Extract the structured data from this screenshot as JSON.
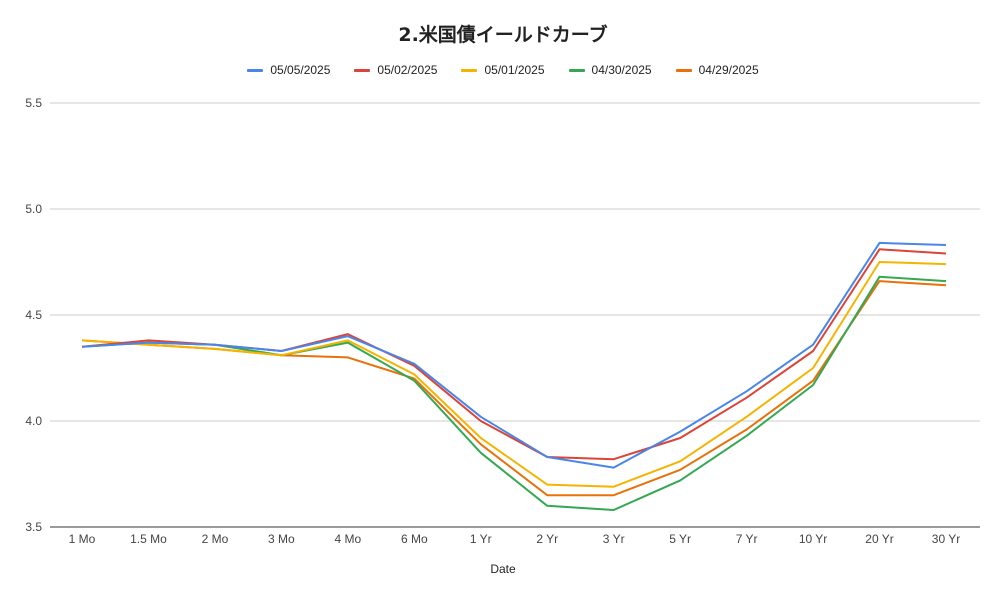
{
  "chart_data": {
    "type": "line",
    "title": "2.米国債イールドカーブ",
    "xlabel": "Date",
    "ylabel": "",
    "categories": [
      "1 Mo",
      "1.5 Mo",
      "2 Mo",
      "3 Mo",
      "4 Mo",
      "6 Mo",
      "1 Yr",
      "2 Yr",
      "3 Yr",
      "5 Yr",
      "7 Yr",
      "10 Yr",
      "20 Yr",
      "30 Yr"
    ],
    "ylim": [
      3.5,
      5.5
    ],
    "yticks": [
      "3.5",
      "4.0",
      "4.5",
      "5.0",
      "5.5"
    ],
    "grid": true,
    "legend_position": "top",
    "series": [
      {
        "name": "05/05/2025",
        "color": "#4a86e8",
        "values": [
          4.35,
          4.37,
          4.36,
          4.33,
          4.4,
          4.27,
          4.02,
          3.83,
          3.78,
          3.95,
          4.14,
          4.36,
          4.84,
          4.83
        ]
      },
      {
        "name": "05/02/2025",
        "color": "#db4437",
        "values": [
          4.35,
          4.38,
          4.36,
          4.33,
          4.41,
          4.26,
          4.0,
          3.83,
          3.82,
          3.92,
          4.11,
          4.33,
          4.81,
          4.79
        ]
      },
      {
        "name": "05/01/2025",
        "color": "#f4b400",
        "values": [
          4.38,
          4.36,
          4.34,
          4.31,
          4.38,
          4.22,
          3.92,
          3.7,
          3.69,
          3.81,
          4.02,
          4.25,
          4.75,
          4.74
        ]
      },
      {
        "name": "04/30/2025",
        "color": "#34a853",
        "values": [
          4.35,
          4.37,
          4.36,
          4.31,
          4.37,
          4.19,
          3.85,
          3.6,
          3.58,
          3.72,
          3.93,
          4.17,
          4.68,
          4.66
        ]
      },
      {
        "name": "04/29/2025",
        "color": "#e8710a",
        "values": [
          4.38,
          4.36,
          4.34,
          4.31,
          4.3,
          4.2,
          3.89,
          3.65,
          3.65,
          3.77,
          3.96,
          4.19,
          4.66,
          4.64
        ]
      }
    ]
  }
}
